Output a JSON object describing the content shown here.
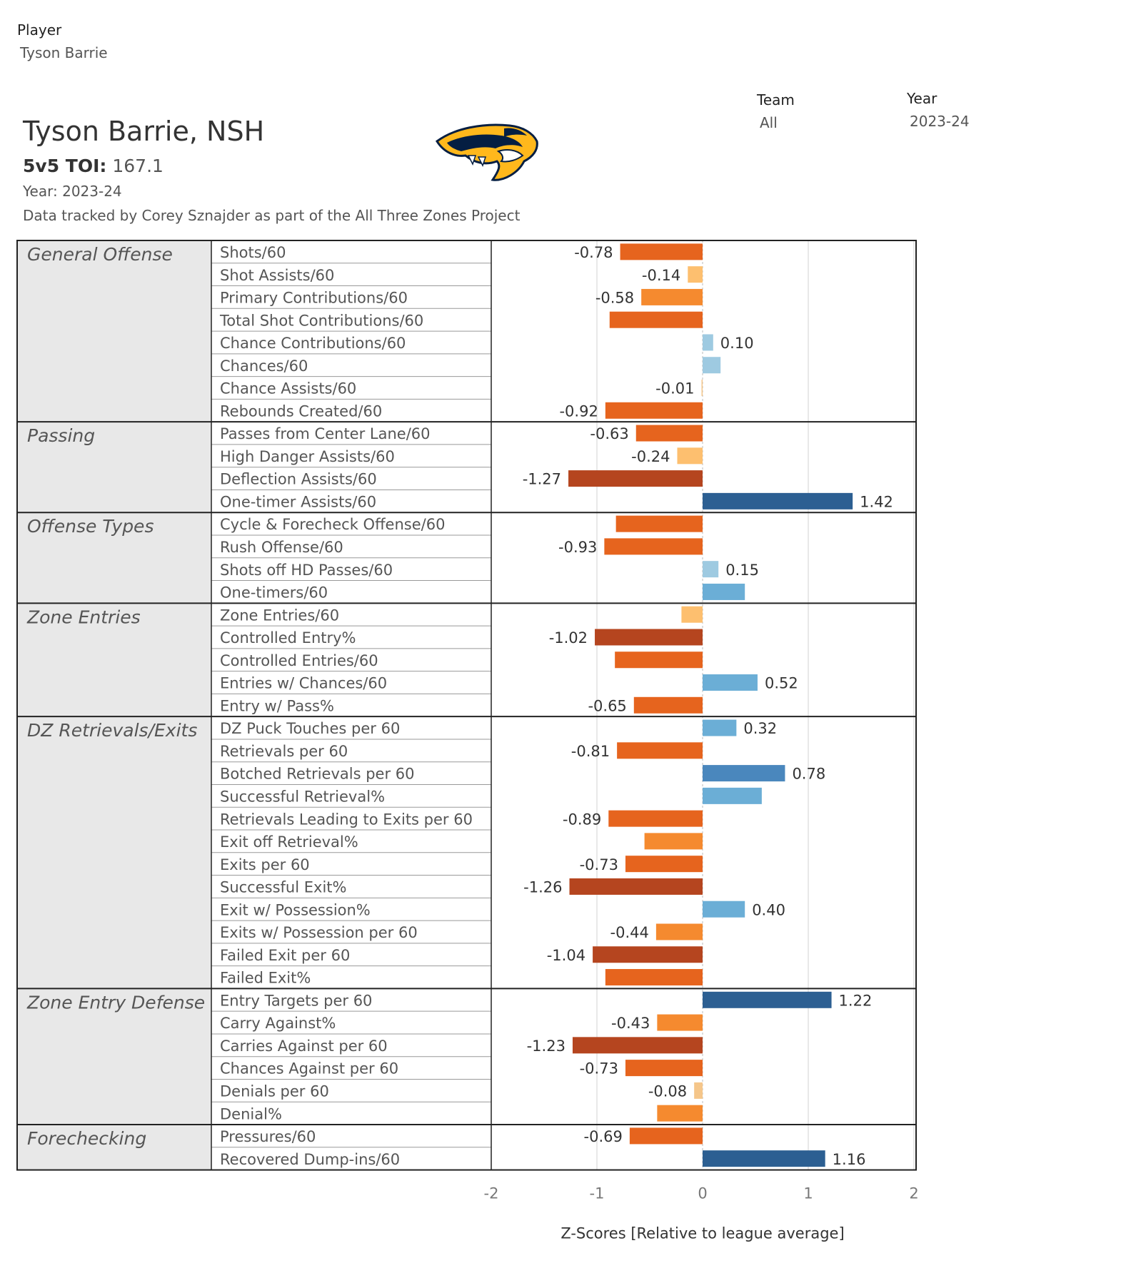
{
  "filters": {
    "player": {
      "label": "Player",
      "value": "Tyson Barrie"
    },
    "team": {
      "label": "Team",
      "value": "All"
    },
    "year": {
      "label": "Year",
      "value": "2023-24"
    }
  },
  "header": {
    "title": "Tyson Barrie, NSH",
    "toi_label": "5v5 TOI:",
    "toi_value": "167.1",
    "year_line": "Year: 2023-24",
    "credit": "Data tracked by Corey Sznajder as part of the All Three Zones Project"
  },
  "logo": {
    "icon": "nashville-predators-logo-icon"
  },
  "colors": {
    "orange_light": "#FDBF6F",
    "orange_mid": "#F58A2F",
    "orange": "#E6641E",
    "orange_dark": "#B5451F",
    "blue_light": "#9ECAE1",
    "blue_mid": "#6BAED6",
    "blue": "#4A87BD",
    "blue_dark": "#2C5F92",
    "section_bg": "#E8E8E8",
    "gridline": "#D0D0D0"
  },
  "chart_data": {
    "type": "bar",
    "orientation": "horizontal",
    "xlabel": "Z-Scores [Relative to league average]",
    "xlim": [
      -2,
      2
    ],
    "xticks": [
      -2,
      -1,
      0,
      1,
      2
    ],
    "xtick_labels": [
      "-2",
      "-1",
      "0",
      "1",
      "2"
    ],
    "sections": [
      {
        "name": "General Offense",
        "metrics": [
          {
            "label": "Shots/60",
            "value": -0.78,
            "value_label": "-0.78"
          },
          {
            "label": "Shot Assists/60",
            "value": -0.14,
            "value_label": "-0.14"
          },
          {
            "label": "Primary Contributions/60",
            "value": -0.58,
            "value_label": "-0.58"
          },
          {
            "label": "Total Shot Contributions/60",
            "value": -0.88,
            "value_label": ""
          },
          {
            "label": "Chance Contributions/60",
            "value": 0.1,
            "value_label": "0.10"
          },
          {
            "label": "Chances/60",
            "value": 0.17,
            "value_label": ""
          },
          {
            "label": "Chance Assists/60",
            "value": -0.01,
            "value_label": "-0.01"
          },
          {
            "label": "Rebounds Created/60",
            "value": -0.92,
            "value_label": "-0.92"
          }
        ]
      },
      {
        "name": "Passing",
        "metrics": [
          {
            "label": "Passes from Center Lane/60",
            "value": -0.63,
            "value_label": "-0.63"
          },
          {
            "label": "High Danger Assists/60",
            "value": -0.24,
            "value_label": "-0.24"
          },
          {
            "label": "Deflection Assists/60",
            "value": -1.27,
            "value_label": "-1.27"
          },
          {
            "label": "One-timer Assists/60",
            "value": 1.42,
            "value_label": "1.42"
          }
        ]
      },
      {
        "name": "Offense Types",
        "metrics": [
          {
            "label": "Cycle & Forecheck Offense/60",
            "value": -0.82,
            "value_label": ""
          },
          {
            "label": "Rush Offense/60",
            "value": -0.93,
            "value_label": "-0.93"
          },
          {
            "label": "Shots off HD Passes/60",
            "value": 0.15,
            "value_label": "0.15"
          },
          {
            "label": "One-timers/60",
            "value": 0.4,
            "value_label": ""
          }
        ]
      },
      {
        "name": "Zone Entries",
        "metrics": [
          {
            "label": "Zone Entries/60",
            "value": -0.2,
            "value_label": ""
          },
          {
            "label": "Controlled Entry%",
            "value": -1.02,
            "value_label": "-1.02"
          },
          {
            "label": "Controlled Entries/60",
            "value": -0.83,
            "value_label": ""
          },
          {
            "label": "Entries w/ Chances/60",
            "value": 0.52,
            "value_label": "0.52"
          },
          {
            "label": "Entry w/ Pass%",
            "value": -0.65,
            "value_label": "-0.65"
          }
        ]
      },
      {
        "name": "DZ Retrievals/Exits",
        "metrics": [
          {
            "label": "DZ Puck Touches per 60",
            "value": 0.32,
            "value_label": "0.32"
          },
          {
            "label": "Retrievals per 60",
            "value": -0.81,
            "value_label": "-0.81"
          },
          {
            "label": "Botched Retrievals per 60",
            "value": 0.78,
            "value_label": "0.78"
          },
          {
            "label": "Successful Retrieval%",
            "value": 0.56,
            "value_label": ""
          },
          {
            "label": "Retrievals Leading to Exits per 60",
            "value": -0.89,
            "value_label": "-0.89"
          },
          {
            "label": "Exit off Retrieval%",
            "value": -0.55,
            "value_label": ""
          },
          {
            "label": "Exits per 60",
            "value": -0.73,
            "value_label": "-0.73"
          },
          {
            "label": "Successful Exit%",
            "value": -1.26,
            "value_label": "-1.26"
          },
          {
            "label": "Exit w/ Possession%",
            "value": 0.4,
            "value_label": "0.40"
          },
          {
            "label": "Exits w/ Possession per 60",
            "value": -0.44,
            "value_label": "-0.44"
          },
          {
            "label": "Failed Exit per 60",
            "value": -1.04,
            "value_label": "-1.04"
          },
          {
            "label": "Failed Exit%",
            "value": -0.92,
            "value_label": ""
          }
        ]
      },
      {
        "name": "Zone Entry Defense",
        "metrics": [
          {
            "label": "Entry Targets per 60",
            "value": 1.22,
            "value_label": "1.22"
          },
          {
            "label": "Carry Against%",
            "value": -0.43,
            "value_label": "-0.43"
          },
          {
            "label": "Carries Against per 60",
            "value": -1.23,
            "value_label": "-1.23"
          },
          {
            "label": "Chances Against per 60",
            "value": -0.73,
            "value_label": "-0.73"
          },
          {
            "label": "Denials per 60",
            "value": -0.08,
            "value_label": "-0.08"
          },
          {
            "label": "Denial%",
            "value": -0.43,
            "value_label": ""
          }
        ]
      },
      {
        "name": "Forechecking",
        "metrics": [
          {
            "label": "Pressures/60",
            "value": -0.69,
            "value_label": "-0.69"
          },
          {
            "label": "Recovered Dump-ins/60",
            "value": 1.16,
            "value_label": "1.16"
          }
        ]
      }
    ]
  }
}
